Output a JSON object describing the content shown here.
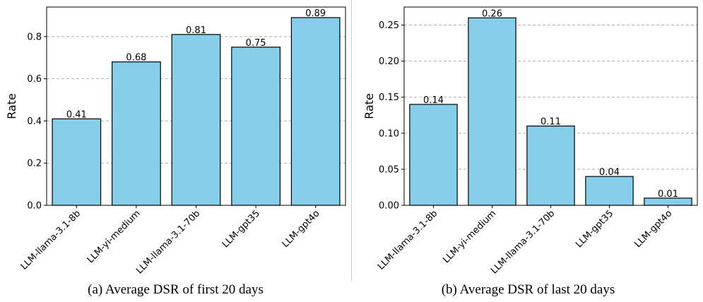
{
  "chart_data": [
    {
      "type": "bar",
      "categories": [
        "LLM-llama-3.1-8b",
        "LLM-yi-medium",
        "LLM-llama-3.1-70b",
        "LLM-gpt35",
        "LLM-gpt4o"
      ],
      "values": [
        0.41,
        0.68,
        0.81,
        0.75,
        0.89
      ],
      "value_labels": [
        "0.41",
        "0.68",
        "0.81",
        "0.75",
        "0.89"
      ],
      "ylabel": "Rate",
      "ylim": [
        0,
        0.94
      ],
      "yticks": [
        0.0,
        0.2,
        0.4,
        0.6,
        0.8
      ],
      "ytick_labels": [
        "0.0",
        "0.2",
        "0.4",
        "0.6",
        "0.8"
      ],
      "grid": "y-dashed",
      "bar_color": "#87ceeb",
      "caption": "(a) Average DSR of first 20 days"
    },
    {
      "type": "bar",
      "categories": [
        "LLM-llama-3.1-8b",
        "LLM-yi-medium",
        "LLM-llama-3.1-70b",
        "LLM-gpt35",
        "LLM-gpt4o"
      ],
      "values": [
        0.14,
        0.26,
        0.11,
        0.04,
        0.01
      ],
      "value_labels": [
        "0.14",
        "0.26",
        "0.11",
        "0.04",
        "0.01"
      ],
      "ylabel": "Rate",
      "ylim": [
        0,
        0.275
      ],
      "yticks": [
        0.0,
        0.05,
        0.1,
        0.15,
        0.2,
        0.25
      ],
      "ytick_labels": [
        "0.00",
        "0.05",
        "0.10",
        "0.15",
        "0.20",
        "0.25"
      ],
      "grid": "y-dashed",
      "bar_color": "#87ceeb",
      "caption": "(b) Average DSR of last 20 days"
    }
  ]
}
